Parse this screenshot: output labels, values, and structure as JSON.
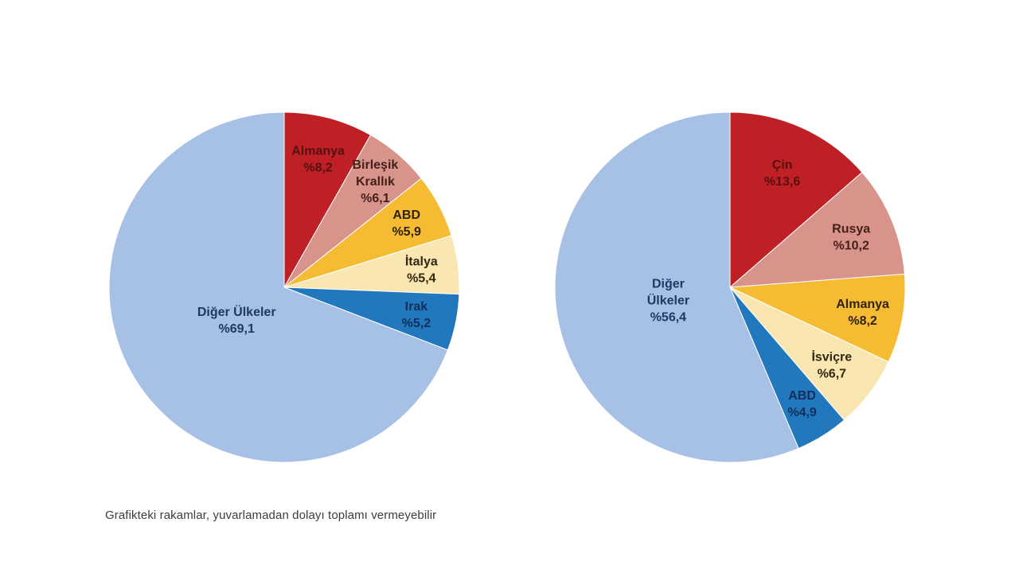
{
  "page": {
    "background": "#ffffff",
    "footnote": "Grafikteki rakamlar, yuvarlamadan dolayı toplamı vermeyebilir"
  },
  "palette": {
    "dark_red": "#BF2026",
    "salmon": "#D8938A",
    "gold": "#F5BB33",
    "cream": "#F9E6B0",
    "blue": "#2178BC",
    "light_blue": "#A7C1E6"
  },
  "chart_data": [
    {
      "type": "pie",
      "position": "left",
      "title": "",
      "legend": "none",
      "start_angle_deg": 0,
      "direction": "clockwise",
      "value_unit": "percent",
      "slices": [
        {
          "slug": "germany",
          "label": "Almanya",
          "value": 8.2,
          "display_lines": [
            "Almanya",
            "%8,2"
          ],
          "color": "#BF2026",
          "label_color": "#55100F",
          "label_r": 0.76
        },
        {
          "slug": "united-kingdom",
          "label": "Birleşik Krallık",
          "value": 6.1,
          "display_lines": [
            "Birleşik",
            "Krallık",
            "%6,1"
          ],
          "color": "#D8938A",
          "label_color": "#45201B",
          "label_r": 0.8
        },
        {
          "slug": "usa",
          "label": "ABD",
          "value": 5.9,
          "display_lines": [
            "ABD",
            "%5,9"
          ],
          "color": "#F5BB33",
          "label_color": "#31220B",
          "label_r": 0.79
        },
        {
          "slug": "italy",
          "label": "İtalya",
          "value": 5.4,
          "display_lines": [
            "İtalya",
            "%5,4"
          ],
          "color": "#F9E6B0",
          "label_color": "#322712",
          "label_r": 0.79
        },
        {
          "slug": "iraq",
          "label": "Irak",
          "value": 5.2,
          "display_lines": [
            "Irak",
            "%5,2"
          ],
          "color": "#2178BC",
          "label_color": "#122E5C",
          "label_r": 0.77
        },
        {
          "slug": "other-countries",
          "label": "Diğer Ülkeler",
          "value": 69.1,
          "display_lines": [
            "Diğer Ülkeler",
            "%69,1"
          ],
          "color": "#A7C1E6",
          "label_color": "#1F3864",
          "label_r": 0.33
        }
      ]
    },
    {
      "type": "pie",
      "position": "right",
      "title": "",
      "legend": "none",
      "start_angle_deg": 0,
      "direction": "clockwise",
      "value_unit": "percent",
      "slices": [
        {
          "slug": "china",
          "label": "Çin",
          "value": 13.6,
          "display_lines": [
            "Çin",
            "%13,6"
          ],
          "color": "#BF2026",
          "label_color": "#55100F",
          "label_r": 0.72
        },
        {
          "slug": "russia",
          "label": "Rusya",
          "value": 10.2,
          "display_lines": [
            "Rusya",
            "%10,2"
          ],
          "color": "#D8938A",
          "label_color": "#45201B",
          "label_r": 0.75
        },
        {
          "slug": "germany",
          "label": "Almanya",
          "value": 8.2,
          "display_lines": [
            "Almanya",
            "%8,2"
          ],
          "color": "#F5BB33",
          "label_color": "#31220B",
          "label_r": 0.77
        },
        {
          "slug": "switzerland",
          "label": "İsviçre",
          "value": 6.7,
          "display_lines": [
            "İsviçre",
            "%6,7"
          ],
          "color": "#F9E6B0",
          "label_color": "#322712",
          "label_r": 0.73
        },
        {
          "slug": "usa",
          "label": "ABD",
          "value": 4.9,
          "display_lines": [
            "ABD",
            "%4,9"
          ],
          "color": "#2178BC",
          "label_color": "#122E5C",
          "label_r": 0.78
        },
        {
          "slug": "other-countries",
          "label": "Diğer Ülkeler",
          "value": 56.4,
          "display_lines": [
            "Diğer",
            "Ülkeler",
            "%56,4"
          ],
          "color": "#A7C1E6",
          "label_color": "#1F3864",
          "label_r": 0.36
        }
      ]
    }
  ]
}
